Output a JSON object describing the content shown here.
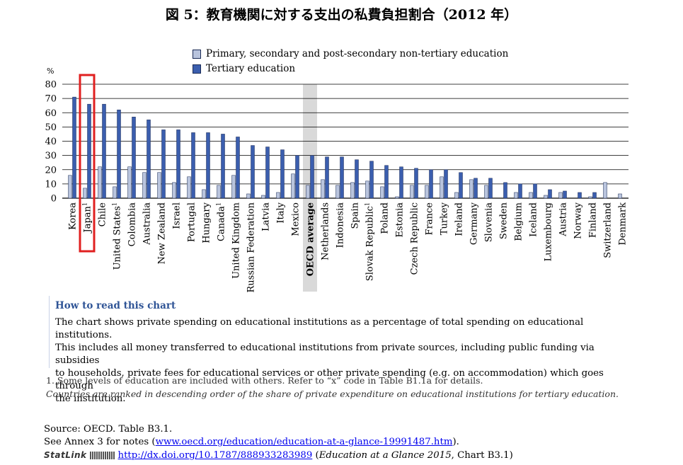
{
  "title": "図 5：教育機関に対する支出の私費負担割合（2012 年）",
  "colors": {
    "primary": "#b9c4dd",
    "tertiary": "#3b5eae",
    "highlight": "#e02020",
    "oecd_band": "#d9d9d9",
    "heading": "#2f5496"
  },
  "chart_data": {
    "type": "bar",
    "ylabel": "%",
    "ylim": [
      0,
      80
    ],
    "yticks": [
      0,
      10,
      20,
      30,
      40,
      50,
      60,
      70,
      80
    ],
    "grid": true,
    "legend_position": "top",
    "highlight_category": "Japan",
    "shaded_category": "OECD average",
    "categories": [
      "Korea",
      "Japan",
      "Chile",
      "United States",
      "Colombia",
      "Australia",
      "New Zealand",
      "Israel",
      "Portugal",
      "Hungary",
      "Canada",
      "United Kingdom",
      "Russian Federation",
      "Latvia",
      "Italy",
      "Mexico",
      "OECD average",
      "Netherlands",
      "Indonesia",
      "Spain",
      "Slovak Republic",
      "Poland",
      "Estonia",
      "Czech Republic",
      "France",
      "Turkey",
      "Ireland",
      "Germany",
      "Slovenia",
      "Sweden",
      "Belgium",
      "Iceland",
      "Luxembourg",
      "Austria",
      "Norway",
      "Finland",
      "Switzerland",
      "Denmark"
    ],
    "superscripts": [
      "",
      "1",
      "",
      "1",
      "",
      "",
      "",
      "",
      "",
      "",
      "1",
      "",
      "",
      "",
      "",
      "",
      "",
      "",
      "",
      "",
      "1",
      "",
      "",
      "",
      "",
      "",
      "",
      "",
      "",
      "",
      "",
      "",
      "",
      "",
      "",
      "",
      "",
      ""
    ],
    "series": [
      {
        "name": "Primary, secondary and post-secondary non-tertiary education",
        "values": [
          16,
          7,
          22,
          8,
          22,
          18,
          18,
          11,
          15,
          6,
          9,
          16,
          3,
          2,
          4,
          17,
          9,
          13,
          9,
          11,
          12,
          8,
          1,
          9,
          9,
          15,
          4,
          13,
          9,
          null,
          4,
          4,
          2,
          4,
          null,
          1,
          11,
          3
        ]
      },
      {
        "name": "Tertiary education",
        "values": [
          71,
          66,
          66,
          62,
          57,
          55,
          48,
          48,
          46,
          46,
          45,
          43,
          37,
          36,
          34,
          30,
          30,
          29,
          29,
          27,
          26,
          23,
          22,
          21,
          20,
          20,
          18,
          14,
          14,
          11,
          10,
          10,
          6,
          5,
          4,
          4,
          null,
          null
        ]
      }
    ]
  },
  "legend": {
    "items": [
      "Primary, secondary and post-secondary non-tertiary education",
      "Tertiary education"
    ]
  },
  "howto": {
    "title": "How to read this chart",
    "lines": [
      "The chart shows private spending on educational institutions as a percentage of total spending on educational institutions.",
      "This includes all money transferred to educational institutions from private sources, including public funding via subsidies",
      "to households, private fees for educational services or other private spending (e.g. on accommodation) which goes through",
      "the institution."
    ]
  },
  "notes": {
    "note1": "1. Some levels of education are included with others. Refer to “x” code in Table B1.1a for details.",
    "note2": "Countries are ranked in descending order of the share of private expenditure on educational institutions for tertiary education."
  },
  "source": {
    "line1": "Source: OECD. Table B3.1.",
    "line2_prefix": "See Annex 3 for notes (",
    "line2_link": "www.oecd.org/education/education-at-a-glance-19991487.htm",
    "line2_suffix": ").",
    "statlink_label": "StatLink",
    "statlink_url": "http://dx.doi.org/10.1787/888933283989",
    "statlink_ref_open": " (",
    "statlink_ref": "Education at a Glance 2015",
    "statlink_ref_close": ", Chart B3.1)"
  }
}
